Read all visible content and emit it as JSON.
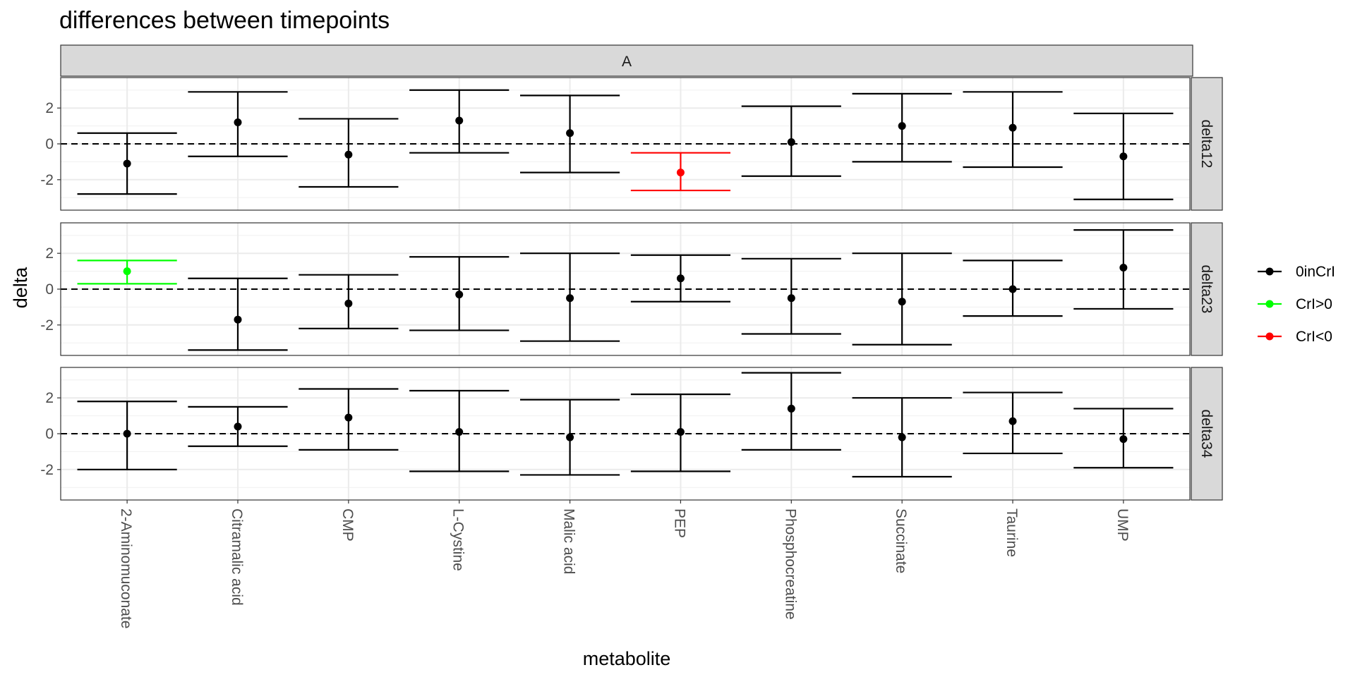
{
  "chart_data": {
    "type": "scatter",
    "title": "differences between timepoints",
    "xlabel": "metabolite",
    "ylabel": "delta",
    "column_strip": "A",
    "categories": [
      "2-Aminomuconate",
      "Citramalic acid",
      "CMP",
      "L-Cystine",
      "Malic acid",
      "PEP",
      "Phosphocreatine",
      "Succinate",
      "Taurine",
      "UMP"
    ],
    "ylim": [
      -3.7,
      3.7
    ],
    "yticks": [
      -2,
      0,
      2
    ],
    "ytick_labels": [
      "-2",
      "0",
      "2"
    ],
    "reference_line": 0,
    "grid": true,
    "legend": {
      "placement": "right",
      "items": [
        {
          "key": "0inCrI",
          "label": "0inCrI",
          "color": "#000000"
        },
        {
          "key": "CrI>0",
          "label": "CrI>0",
          "color": "#00ff00"
        },
        {
          "key": "CrI<0",
          "label": "CrI<0",
          "color": "#ff0000"
        }
      ]
    },
    "panels": [
      {
        "label": "delta12",
        "points": [
          {
            "metabolite": "2-Aminomuconate",
            "estimate": -1.1,
            "lower": -2.8,
            "upper": 0.6,
            "group": "0inCrI"
          },
          {
            "metabolite": "Citramalic acid",
            "estimate": 1.2,
            "lower": -0.7,
            "upper": 2.9,
            "group": "0inCrI"
          },
          {
            "metabolite": "CMP",
            "estimate": -0.6,
            "lower": -2.4,
            "upper": 1.4,
            "group": "0inCrI"
          },
          {
            "metabolite": "L-Cystine",
            "estimate": 1.3,
            "lower": -0.5,
            "upper": 3.0,
            "group": "0inCrI"
          },
          {
            "metabolite": "Malic acid",
            "estimate": 0.6,
            "lower": -1.6,
            "upper": 2.7,
            "group": "0inCrI"
          },
          {
            "metabolite": "PEP",
            "estimate": -1.6,
            "lower": -2.6,
            "upper": -0.5,
            "group": "CrI<0"
          },
          {
            "metabolite": "Phosphocreatine",
            "estimate": 0.1,
            "lower": -1.8,
            "upper": 2.1,
            "group": "0inCrI"
          },
          {
            "metabolite": "Succinate",
            "estimate": 1.0,
            "lower": -1.0,
            "upper": 2.8,
            "group": "0inCrI"
          },
          {
            "metabolite": "Taurine",
            "estimate": 0.9,
            "lower": -1.3,
            "upper": 2.9,
            "group": "0inCrI"
          },
          {
            "metabolite": "UMP",
            "estimate": -0.7,
            "lower": -3.1,
            "upper": 1.7,
            "group": "0inCrI"
          }
        ]
      },
      {
        "label": "delta23",
        "points": [
          {
            "metabolite": "2-Aminomuconate",
            "estimate": 1.0,
            "lower": 0.3,
            "upper": 1.6,
            "group": "CrI>0"
          },
          {
            "metabolite": "Citramalic acid",
            "estimate": -1.7,
            "lower": -3.4,
            "upper": 0.6,
            "group": "0inCrI"
          },
          {
            "metabolite": "CMP",
            "estimate": -0.8,
            "lower": -2.2,
            "upper": 0.8,
            "group": "0inCrI"
          },
          {
            "metabolite": "L-Cystine",
            "estimate": -0.3,
            "lower": -2.3,
            "upper": 1.8,
            "group": "0inCrI"
          },
          {
            "metabolite": "Malic acid",
            "estimate": -0.5,
            "lower": -2.9,
            "upper": 2.0,
            "group": "0inCrI"
          },
          {
            "metabolite": "PEP",
            "estimate": 0.6,
            "lower": -0.7,
            "upper": 1.9,
            "group": "0inCrI"
          },
          {
            "metabolite": "Phosphocreatine",
            "estimate": -0.5,
            "lower": -2.5,
            "upper": 1.7,
            "group": "0inCrI"
          },
          {
            "metabolite": "Succinate",
            "estimate": -0.7,
            "lower": -3.1,
            "upper": 2.0,
            "group": "0inCrI"
          },
          {
            "metabolite": "Taurine",
            "estimate": 0.0,
            "lower": -1.5,
            "upper": 1.6,
            "group": "0inCrI"
          },
          {
            "metabolite": "UMP",
            "estimate": 1.2,
            "lower": -1.1,
            "upper": 3.3,
            "group": "0inCrI"
          }
        ]
      },
      {
        "label": "delta34",
        "points": [
          {
            "metabolite": "2-Aminomuconate",
            "estimate": 0.0,
            "lower": -2.0,
            "upper": 1.8,
            "group": "0inCrI"
          },
          {
            "metabolite": "Citramalic acid",
            "estimate": 0.4,
            "lower": -0.7,
            "upper": 1.5,
            "group": "0inCrI"
          },
          {
            "metabolite": "CMP",
            "estimate": 0.9,
            "lower": -0.9,
            "upper": 2.5,
            "group": "0inCrI"
          },
          {
            "metabolite": "L-Cystine",
            "estimate": 0.1,
            "lower": -2.1,
            "upper": 2.4,
            "group": "0inCrI"
          },
          {
            "metabolite": "Malic acid",
            "estimate": -0.2,
            "lower": -2.3,
            "upper": 1.9,
            "group": "0inCrI"
          },
          {
            "metabolite": "PEP",
            "estimate": 0.1,
            "lower": -2.1,
            "upper": 2.2,
            "group": "0inCrI"
          },
          {
            "metabolite": "Phosphocreatine",
            "estimate": 1.4,
            "lower": -0.9,
            "upper": 3.4,
            "group": "0inCrI"
          },
          {
            "metabolite": "Succinate",
            "estimate": -0.2,
            "lower": -2.4,
            "upper": 2.0,
            "group": "0inCrI"
          },
          {
            "metabolite": "Taurine",
            "estimate": 0.7,
            "lower": -1.1,
            "upper": 2.3,
            "group": "0inCrI"
          },
          {
            "metabolite": "UMP",
            "estimate": -0.3,
            "lower": -1.9,
            "upper": 1.4,
            "group": "0inCrI"
          }
        ]
      }
    ]
  }
}
